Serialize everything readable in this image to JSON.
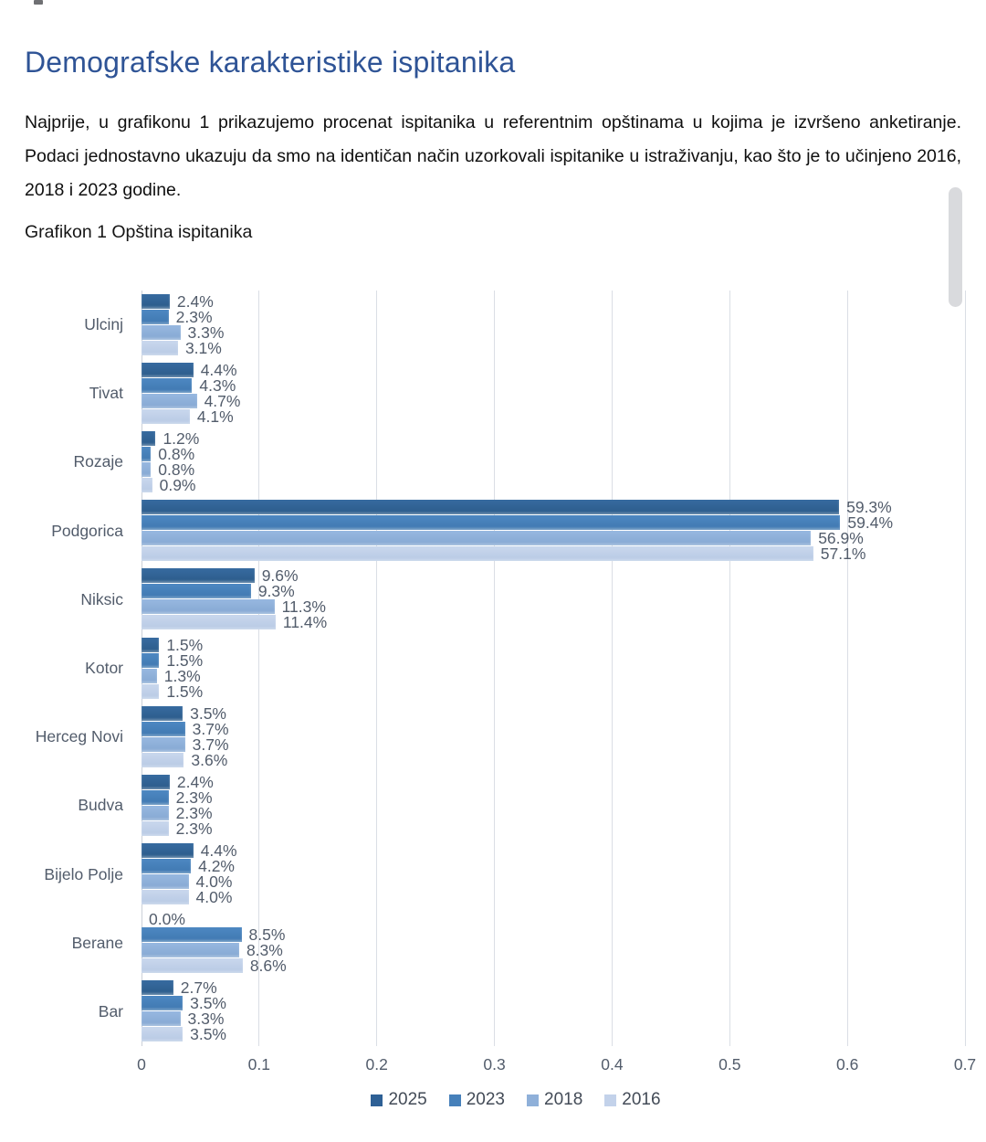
{
  "page": {
    "title": "Demografske karakteristike ispitanika",
    "paragraph": "Najprije, u grafikonu 1 prikazujemo procenat ispitanika u referentnim opštinama u kojima je izvršeno anketiranje. Podaci jednostavno ukazuju da smo na identičan način uzorkovali ispitanike u istraživanju, kao što je to učinjeno 2016, 2018 i 2023 godine.",
    "caption": "Grafikon 1 Opština ispitanika",
    "title_color": "#2F5496"
  },
  "chart_data": {
    "type": "bar",
    "orientation": "horizontal",
    "title": "Grafikon 1 Opština ispitanika",
    "xlabel": "",
    "ylabel": "",
    "xlim": [
      0,
      0.7
    ],
    "x_ticks": [
      "0",
      "0.1",
      "0.2",
      "0.3",
      "0.4",
      "0.5",
      "0.6",
      "0.7"
    ],
    "grid": true,
    "legend_position": "bottom",
    "value_suffix": "%",
    "categories": [
      "Ulcinj",
      "Tivat",
      "Rozaje",
      "Podgorica",
      "Niksic",
      "Kotor",
      "Herceg Novi",
      "Budva",
      "Bijelo Polje",
      "Berane",
      "Bar"
    ],
    "series": [
      {
        "name": "2025",
        "color": "#2E6095",
        "gradient": [
          "#376BA0",
          "#2B5B89"
        ],
        "values": [
          2.4,
          4.4,
          1.2,
          59.3,
          9.6,
          1.5,
          3.5,
          2.4,
          4.4,
          0.0,
          2.7
        ]
      },
      {
        "name": "2023",
        "color": "#4680BA",
        "gradient": [
          "#4D88C2",
          "#3F78B0"
        ],
        "values": [
          2.3,
          4.3,
          0.8,
          59.4,
          9.3,
          1.5,
          3.7,
          2.3,
          4.2,
          8.5,
          3.5
        ]
      },
      {
        "name": "2018",
        "color": "#8FB0D9",
        "gradient": [
          "#97B8E0",
          "#85A8D2"
        ],
        "values": [
          3.3,
          4.7,
          0.8,
          56.9,
          11.3,
          1.3,
          3.7,
          2.3,
          4.0,
          8.3,
          3.3
        ]
      },
      {
        "name": "2016",
        "color": "#C3D2EA",
        "gradient": [
          "#C9D7ED",
          "#B7C9E4"
        ],
        "values": [
          3.1,
          4.1,
          0.9,
          57.1,
          11.4,
          1.5,
          3.6,
          2.3,
          4.0,
          8.6,
          3.5
        ]
      }
    ]
  }
}
